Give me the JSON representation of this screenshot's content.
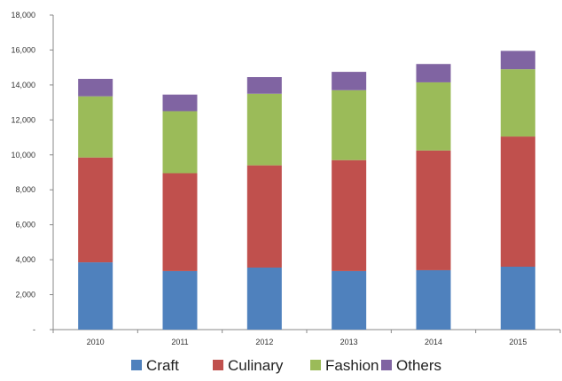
{
  "chart_data": {
    "type": "bar",
    "stacked": true,
    "categories": [
      "2010",
      "2011",
      "2012",
      "2013",
      "2014",
      "2015"
    ],
    "series": [
      {
        "name": "Craft",
        "color": "#4F81BD",
        "values": [
          3850,
          3350,
          3550,
          3350,
          3400,
          3600
        ]
      },
      {
        "name": "Culinary",
        "color": "#C0504D",
        "values": [
          6000,
          5600,
          5850,
          6350,
          6850,
          7450
        ]
      },
      {
        "name": "Fashion",
        "color": "#9BBB59",
        "values": [
          3500,
          3550,
          4100,
          4000,
          3900,
          3850
        ]
      },
      {
        "name": "Others",
        "color": "#8064A2",
        "values": [
          1000,
          950,
          950,
          1050,
          1050,
          1050
        ]
      }
    ],
    "y_ticks": [
      "-",
      "2,000",
      "4,000",
      "6,000",
      "8,000",
      "10,000",
      "12,000",
      "14,000",
      "16,000",
      "18,000"
    ],
    "ylim": [
      0,
      18000
    ],
    "grid": false,
    "legend_position": "bottom"
  }
}
